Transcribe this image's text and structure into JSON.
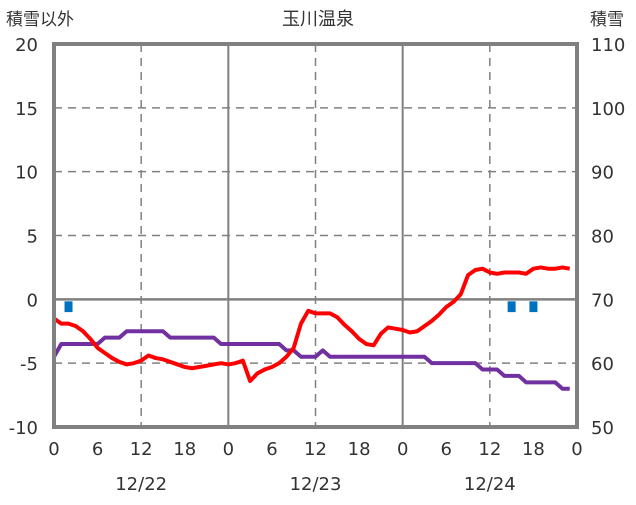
{
  "chart_data": {
    "type": "line",
    "title": "玉川温泉",
    "ylabel_left": "積雪以外",
    "ylabel_right": "積雪",
    "ylim_left": [
      -10,
      20
    ],
    "ylim_right": [
      50,
      110
    ],
    "yticks_left": [
      "-10",
      "-5",
      "0",
      "5",
      "10",
      "15",
      "20"
    ],
    "yticks_right": [
      "50",
      "60",
      "70",
      "80",
      "90",
      "100",
      "110"
    ],
    "xticks": [
      "0",
      "6",
      "12",
      "18",
      "0",
      "6",
      "12",
      "18",
      "0",
      "6",
      "12",
      "18",
      "0"
    ],
    "date_labels": [
      "12/22",
      "12/23",
      "12/24"
    ],
    "hours": 72,
    "colors": {
      "temperature": "#ff0000",
      "snow_depth": "#7030a0",
      "precipitation": "#0070c0",
      "grid": "#808080"
    },
    "series": [
      {
        "name": "temperature",
        "axis": "left",
        "values": [
          -1.5,
          -1.9,
          -1.9,
          -2.1,
          -2.5,
          -3.1,
          -3.8,
          -4.2,
          -4.6,
          -4.9,
          -5.1,
          -5.0,
          -4.8,
          -4.4,
          -4.6,
          -4.7,
          -4.9,
          -5.1,
          -5.3,
          -5.4,
          -5.3,
          -5.2,
          -5.1,
          -5.0,
          -5.1,
          -5.0,
          -4.8,
          -6.4,
          -5.8,
          -5.5,
          -5.3,
          -5.0,
          -4.5,
          -3.8,
          -1.9,
          -0.9,
          -1.1,
          -1.1,
          -1.1,
          -1.4,
          -2.0,
          -2.5,
          -3.1,
          -3.5,
          -3.6,
          -2.7,
          -2.2,
          -2.3,
          -2.4,
          -2.6,
          -2.5,
          -2.1,
          -1.7,
          -1.2,
          -0.6,
          -0.2,
          0.4,
          1.9,
          2.3,
          2.4,
          2.1,
          2.0,
          2.1,
          2.1,
          2.1,
          2.0,
          2.4,
          2.5,
          2.4,
          2.4,
          2.5,
          2.4
        ]
      },
      {
        "name": "snow_depth",
        "axis": "right",
        "values": [
          61,
          63,
          63,
          63,
          63,
          63,
          63,
          64,
          64,
          64,
          65,
          65,
          65,
          65,
          65,
          65,
          64,
          64,
          64,
          64,
          64,
          64,
          64,
          63,
          63,
          63,
          63,
          63,
          63,
          63,
          63,
          63,
          62,
          62,
          61,
          61,
          61,
          62,
          61,
          61,
          61,
          61,
          61,
          61,
          61,
          61,
          61,
          61,
          61,
          61,
          61,
          61,
          60,
          60,
          60,
          60,
          60,
          60,
          60,
          59,
          59,
          59,
          58,
          58,
          58,
          57,
          57,
          57,
          57,
          57,
          56,
          56
        ]
      },
      {
        "name": "precipitation",
        "axis": "left",
        "bars": [
          {
            "hour": 2,
            "value": 1
          },
          {
            "hour": 63,
            "value": 1
          },
          {
            "hour": 66,
            "value": 1
          }
        ]
      }
    ]
  }
}
